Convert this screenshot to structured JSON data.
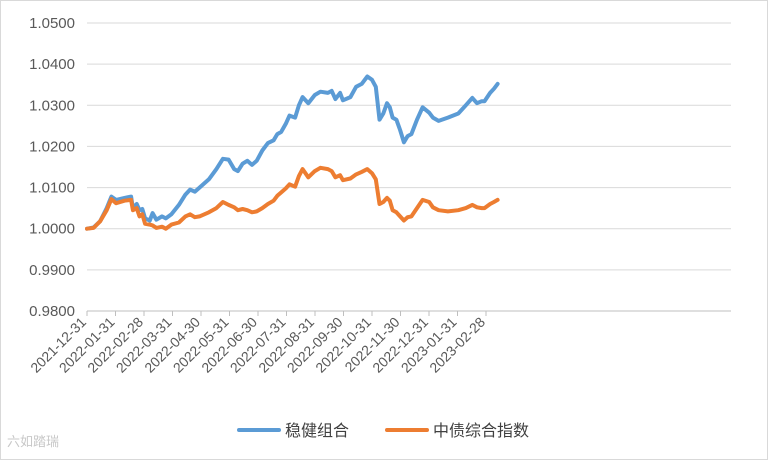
{
  "watermark": "六如踏瑞",
  "chart_data": {
    "type": "line",
    "title": "",
    "xlabel": "",
    "ylabel": "",
    "ylim": [
      0.98,
      1.05
    ],
    "y_ticks": [
      "0.9800",
      "0.9900",
      "1.0000",
      "1.0100",
      "1.0200",
      "1.0300",
      "1.0400",
      "1.0500"
    ],
    "x_ticks": [
      "2021-12-31",
      "2022-01-31",
      "2022-02-28",
      "2022-03-31",
      "2022-04-30",
      "2022-05-31",
      "2022-06-30",
      "2022-07-31",
      "2022-08-31",
      "2022-09-30",
      "2022-10-31",
      "2022-11-30",
      "2022-12-31",
      "2023-01-31",
      "2023-02-28"
    ],
    "grid": "horizontal",
    "legend_position": "bottom",
    "series": [
      {
        "name": "稳健组合",
        "color": "#5b9bd5",
        "points": [
          [
            "2021-12-31",
            1.0
          ],
          [
            "2022-01-07",
            1.0003
          ],
          [
            "2022-01-14",
            1.0018
          ],
          [
            "2022-01-21",
            1.005
          ],
          [
            "2022-01-26",
            1.0078
          ],
          [
            "2022-01-31",
            1.007
          ],
          [
            "2022-02-09",
            1.0075
          ],
          [
            "2022-02-16",
            1.0078
          ],
          [
            "2022-02-18",
            1.005
          ],
          [
            "2022-02-22",
            1.006
          ],
          [
            "2022-02-25",
            1.0045
          ],
          [
            "2022-02-28",
            1.0048
          ],
          [
            "2022-03-03",
            1.0025
          ],
          [
            "2022-03-08",
            1.002
          ],
          [
            "2022-03-11",
            1.0038
          ],
          [
            "2022-03-15",
            1.0022
          ],
          [
            "2022-03-21",
            1.003
          ],
          [
            "2022-03-25",
            1.0025
          ],
          [
            "2022-03-31",
            1.0035
          ],
          [
            "2022-04-08",
            1.0058
          ],
          [
            "2022-04-15",
            1.0083
          ],
          [
            "2022-04-20",
            1.0095
          ],
          [
            "2022-04-25",
            1.009
          ],
          [
            "2022-04-30",
            1.01
          ],
          [
            "2022-05-10",
            1.012
          ],
          [
            "2022-05-18",
            1.0145
          ],
          [
            "2022-05-25",
            1.017
          ],
          [
            "2022-05-31",
            1.0168
          ],
          [
            "2022-06-06",
            1.0145
          ],
          [
            "2022-06-10",
            1.014
          ],
          [
            "2022-06-15",
            1.0158
          ],
          [
            "2022-06-20",
            1.0165
          ],
          [
            "2022-06-25",
            1.0155
          ],
          [
            "2022-06-30",
            1.0165
          ],
          [
            "2022-07-06",
            1.019
          ],
          [
            "2022-07-12",
            1.0208
          ],
          [
            "2022-07-18",
            1.0215
          ],
          [
            "2022-07-22",
            1.023
          ],
          [
            "2022-07-26",
            1.0235
          ],
          [
            "2022-07-31",
            1.0255
          ],
          [
            "2022-08-04",
            1.0275
          ],
          [
            "2022-08-10",
            1.027
          ],
          [
            "2022-08-14",
            1.03
          ],
          [
            "2022-08-18",
            1.032
          ],
          [
            "2022-08-24",
            1.0305
          ],
          [
            "2022-08-31",
            1.0325
          ],
          [
            "2022-09-06",
            1.0333
          ],
          [
            "2022-09-14",
            1.033
          ],
          [
            "2022-09-18",
            1.0335
          ],
          [
            "2022-09-22",
            1.0315
          ],
          [
            "2022-09-27",
            1.033
          ],
          [
            "2022-09-30",
            1.0312
          ],
          [
            "2022-10-08",
            1.032
          ],
          [
            "2022-10-14",
            1.0345
          ],
          [
            "2022-10-20",
            1.0352
          ],
          [
            "2022-10-26",
            1.037
          ],
          [
            "2022-10-31",
            1.0362
          ],
          [
            "2022-11-04",
            1.0345
          ],
          [
            "2022-11-08",
            1.0265
          ],
          [
            "2022-11-12",
            1.028
          ],
          [
            "2022-11-16",
            1.0305
          ],
          [
            "2022-11-19",
            1.0295
          ],
          [
            "2022-11-22",
            1.027
          ],
          [
            "2022-11-26",
            1.0265
          ],
          [
            "2022-11-30",
            1.024
          ],
          [
            "2022-12-04",
            1.021
          ],
          [
            "2022-12-08",
            1.0225
          ],
          [
            "2022-12-12",
            1.023
          ],
          [
            "2022-12-18",
            1.0265
          ],
          [
            "2022-12-24",
            1.0295
          ],
          [
            "2022-12-31",
            1.0282
          ],
          [
            "2023-01-04",
            1.027
          ],
          [
            "2023-01-10",
            1.0262
          ],
          [
            "2023-01-20",
            1.027
          ],
          [
            "2023-01-31",
            1.028
          ],
          [
            "2023-02-08",
            1.03
          ],
          [
            "2023-02-15",
            1.0318
          ],
          [
            "2023-02-20",
            1.0305
          ],
          [
            "2023-02-25",
            1.031
          ],
          [
            "2023-02-28",
            1.031
          ],
          [
            "2023-03-06",
            1.033
          ],
          [
            "2023-03-10",
            1.034
          ],
          [
            "2023-03-14",
            1.0352
          ]
        ]
      },
      {
        "name": "中债综合指数",
        "color": "#ed7d31",
        "points": [
          [
            "2021-12-31",
            1.0
          ],
          [
            "2022-01-07",
            1.0002
          ],
          [
            "2022-01-14",
            1.0018
          ],
          [
            "2022-01-21",
            1.0045
          ],
          [
            "2022-01-26",
            1.0072
          ],
          [
            "2022-01-31",
            1.0062
          ],
          [
            "2022-02-09",
            1.0068
          ],
          [
            "2022-02-16",
            1.007
          ],
          [
            "2022-02-18",
            1.0045
          ],
          [
            "2022-02-22",
            1.005
          ],
          [
            "2022-02-25",
            1.003
          ],
          [
            "2022-02-28",
            1.0035
          ],
          [
            "2022-03-03",
            1.0012
          ],
          [
            "2022-03-08",
            1.001
          ],
          [
            "2022-03-11",
            1.0008
          ],
          [
            "2022-03-15",
            1.0002
          ],
          [
            "2022-03-21",
            1.0005
          ],
          [
            "2022-03-25",
            1.0
          ],
          [
            "2022-03-31",
            1.001
          ],
          [
            "2022-04-08",
            1.0015
          ],
          [
            "2022-04-15",
            1.003
          ],
          [
            "2022-04-20",
            1.0035
          ],
          [
            "2022-04-25",
            1.0028
          ],
          [
            "2022-04-30",
            1.003
          ],
          [
            "2022-05-10",
            1.004
          ],
          [
            "2022-05-18",
            1.005
          ],
          [
            "2022-05-25",
            1.0065
          ],
          [
            "2022-05-31",
            1.0058
          ],
          [
            "2022-06-06",
            1.0052
          ],
          [
            "2022-06-10",
            1.0045
          ],
          [
            "2022-06-15",
            1.0048
          ],
          [
            "2022-06-20",
            1.0045
          ],
          [
            "2022-06-25",
            1.004
          ],
          [
            "2022-06-30",
            1.0042
          ],
          [
            "2022-07-06",
            1.005
          ],
          [
            "2022-07-12",
            1.006
          ],
          [
            "2022-07-18",
            1.0068
          ],
          [
            "2022-07-22",
            1.008
          ],
          [
            "2022-07-26",
            1.0088
          ],
          [
            "2022-07-31",
            1.0098
          ],
          [
            "2022-08-04",
            1.0108
          ],
          [
            "2022-08-10",
            1.0102
          ],
          [
            "2022-08-14",
            1.0128
          ],
          [
            "2022-08-18",
            1.0145
          ],
          [
            "2022-08-24",
            1.0125
          ],
          [
            "2022-08-31",
            1.014
          ],
          [
            "2022-09-06",
            1.0148
          ],
          [
            "2022-09-14",
            1.0145
          ],
          [
            "2022-09-18",
            1.014
          ],
          [
            "2022-09-22",
            1.0125
          ],
          [
            "2022-09-27",
            1.013
          ],
          [
            "2022-09-30",
            1.0118
          ],
          [
            "2022-10-08",
            1.0122
          ],
          [
            "2022-10-14",
            1.0132
          ],
          [
            "2022-10-20",
            1.0138
          ],
          [
            "2022-10-26",
            1.0145
          ],
          [
            "2022-10-31",
            1.0135
          ],
          [
            "2022-11-04",
            1.012
          ],
          [
            "2022-11-08",
            1.006
          ],
          [
            "2022-11-12",
            1.0065
          ],
          [
            "2022-11-16",
            1.0075
          ],
          [
            "2022-11-19",
            1.0068
          ],
          [
            "2022-11-22",
            1.0045
          ],
          [
            "2022-11-26",
            1.004
          ],
          [
            "2022-11-30",
            1.003
          ],
          [
            "2022-12-04",
            1.002
          ],
          [
            "2022-12-08",
            1.0028
          ],
          [
            "2022-12-12",
            1.003
          ],
          [
            "2022-12-18",
            1.005
          ],
          [
            "2022-12-24",
            1.007
          ],
          [
            "2022-12-31",
            1.0065
          ],
          [
            "2023-01-04",
            1.0052
          ],
          [
            "2023-01-10",
            1.0045
          ],
          [
            "2023-01-20",
            1.0042
          ],
          [
            "2023-01-31",
            1.0045
          ],
          [
            "2023-02-08",
            1.005
          ],
          [
            "2023-02-15",
            1.0058
          ],
          [
            "2023-02-20",
            1.0052
          ],
          [
            "2023-02-25",
            1.005
          ],
          [
            "2023-02-28",
            1.005
          ],
          [
            "2023-03-06",
            1.006
          ],
          [
            "2023-03-10",
            1.0065
          ],
          [
            "2023-03-14",
            1.007
          ]
        ]
      }
    ]
  }
}
